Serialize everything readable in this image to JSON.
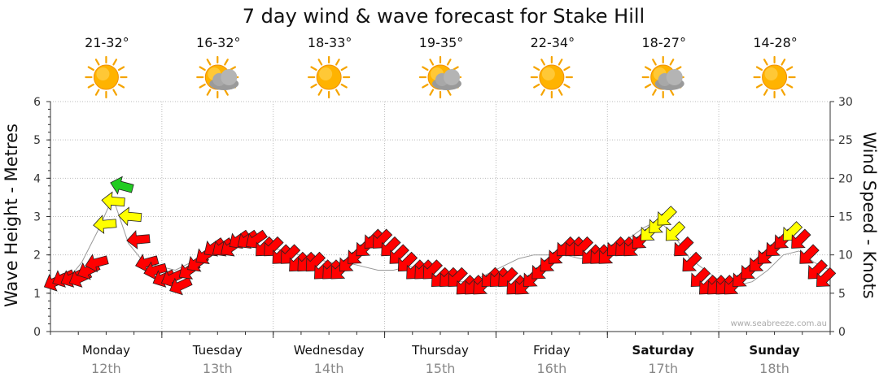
{
  "chart_data": {
    "type": "line",
    "title": "7 day wind & wave forecast for Stake Hill",
    "ylabel_left": "Wave Height - Metres",
    "ylabel_right": "Wind Speed - Knots",
    "ylim_left": [
      0,
      6
    ],
    "ylim_right": [
      0,
      30
    ],
    "yticks_left": [
      "0",
      "1",
      "2",
      "3",
      "4",
      "5",
      "6"
    ],
    "yticks_right": [
      "0",
      "5",
      "10",
      "15",
      "20",
      "25",
      "30"
    ],
    "grid": true,
    "watermark": "www.seabreeze.com.au",
    "days": [
      {
        "day": "Monday",
        "date": "12th",
        "temp": "21-32°",
        "icon": "sun-icon",
        "bold": false
      },
      {
        "day": "Tuesday",
        "date": "13th",
        "temp": "16-32°",
        "icon": "sun-cloud-icon",
        "bold": false
      },
      {
        "day": "Wednesday",
        "date": "14th",
        "temp": "18-33°",
        "icon": "sun-icon",
        "bold": false
      },
      {
        "day": "Thursday",
        "date": "15th",
        "temp": "19-35°",
        "icon": "sun-cloud-icon",
        "bold": false
      },
      {
        "day": "Friday",
        "date": "16th",
        "temp": "22-34°",
        "icon": "sun-icon",
        "bold": false
      },
      {
        "day": "Saturday",
        "date": "17th",
        "temp": "18-27°",
        "icon": "sun-cloud-icon",
        "bold": true
      },
      {
        "day": "Sunday",
        "date": "18th",
        "temp": "14-28°",
        "icon": "sun-icon",
        "bold": true
      }
    ],
    "colors": {
      "low": "#ff0000",
      "mid": "#ffff00",
      "high": "#22cc22",
      "grid": "#bbbbbb",
      "axis": "#333333"
    },
    "wave_series": [
      1.3,
      1.3,
      1.8,
      2.6,
      3.5,
      2.3,
      1.8,
      1.7,
      1.6,
      1.8,
      2.0,
      2.1,
      2.2,
      2.2,
      2.2,
      2.1,
      2.0,
      1.9,
      1.8,
      1.8,
      1.7,
      1.6,
      1.6,
      1.7,
      1.6,
      1.4,
      1.3,
      1.3,
      1.5,
      1.7,
      1.9,
      2.0,
      2.0,
      2.0,
      1.9,
      1.9,
      2.0,
      2.4,
      2.7,
      2.9,
      2.5,
      1.9,
      1.6,
      1.3,
      1.2,
      1.3,
      1.6,
      2.0,
      2.1,
      1.8,
      1.6
    ],
    "wind_series": [
      6.5,
      7,
      7,
      7,
      8,
      9,
      14,
      17,
      19,
      15,
      12,
      9,
      8,
      7,
      7,
      6,
      8,
      9,
      10,
      11,
      11,
      11,
      12,
      12,
      12,
      11,
      11,
      10,
      10,
      9,
      9,
      9,
      8,
      8,
      8,
      9,
      10,
      11,
      12,
      12,
      11,
      10,
      9,
      8,
      8,
      8,
      7,
      7,
      7,
      6,
      6,
      6,
      7,
      7,
      7,
      6,
      6,
      7,
      8,
      9,
      10,
      11,
      11,
      11,
      10,
      10,
      10,
      11,
      11,
      11,
      12,
      13,
      14,
      15,
      13,
      11,
      9,
      7,
      6,
      6,
      6,
      6,
      7,
      8,
      9,
      10,
      11,
      12,
      13,
      12,
      10,
      8,
      7
    ],
    "wind_directions": [
      110,
      110,
      110,
      110,
      110,
      120,
      130,
      140,
      150,
      140,
      130,
      120,
      120,
      110,
      110,
      110,
      100,
      100,
      100,
      100,
      100,
      100,
      100,
      100,
      100,
      90,
      90,
      90,
      90,
      90,
      90,
      90,
      90,
      90,
      90,
      90,
      90,
      90,
      90,
      90,
      90,
      90,
      90,
      90,
      90,
      90,
      90,
      90,
      90,
      90,
      90,
      90,
      90,
      90,
      90,
      90,
      90,
      90,
      90,
      90,
      90,
      90,
      90,
      90,
      90,
      90,
      90,
      90,
      90,
      90,
      90,
      90,
      90,
      90,
      90,
      90,
      90,
      90,
      90,
      90,
      90,
      90,
      90,
      90,
      90,
      90,
      90,
      90,
      90,
      90,
      90,
      90,
      90
    ]
  }
}
